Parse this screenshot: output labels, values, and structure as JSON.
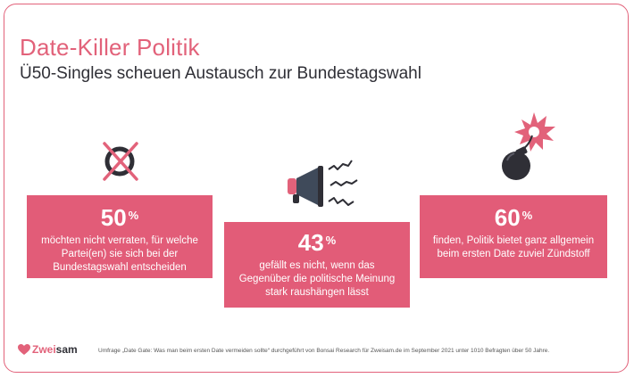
{
  "header": {
    "title": "Date-Killer Politik",
    "subtitle": "Ü50-Singles scheuen Austausch zur Bundestagswahl"
  },
  "cards": [
    {
      "value": "50",
      "unit": "%",
      "text": "möchten nicht verraten, für welche Partei(en) sie sich bei der Bundestagswahl entscheiden",
      "icon": "crossed-ballot-icon"
    },
    {
      "value": "43",
      "unit": "%",
      "text": "gefällt es nicht, wenn das Gegenüber die politische Meinung stark raushängen lässt",
      "icon": "megaphone-icon"
    },
    {
      "value": "60",
      "unit": "%",
      "text": "finden, Politik bietet ganz allgemein beim ersten Date zuviel Zündstoff",
      "icon": "bomb-icon"
    }
  ],
  "footer": {
    "brand_prefix": "Zwei",
    "brand_suffix": "sam",
    "note": "Umfrage „Date Gate: Was man beim ersten Date vermeiden sollte“ durchgeführt von Bonsai Research für Zweisam.de im September 2021 unter 1010 Befragten über 50 Jahre."
  },
  "colors": {
    "accent": "#e2627a",
    "card": "#e25c78",
    "text_dark": "#2f2f36"
  }
}
